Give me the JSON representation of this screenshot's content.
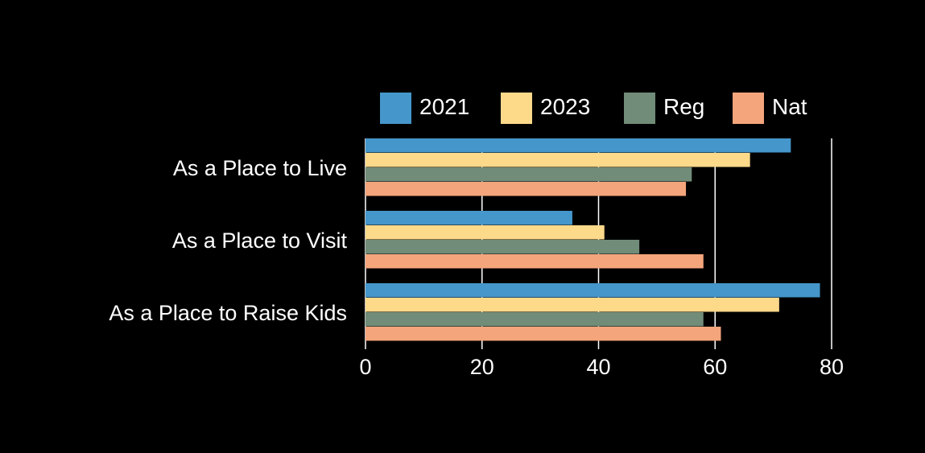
{
  "chart_data": {
    "type": "bar",
    "orientation": "horizontal",
    "title": "",
    "xlabel": "",
    "ylabel": "",
    "categories": [
      "As a Place to Live",
      "As a Place to Visit",
      "As a Place to Raise Kids"
    ],
    "series": [
      {
        "name": "2021",
        "color": "#4596CB",
        "values": [
          73,
          35.5,
          78
        ]
      },
      {
        "name": "2023",
        "color": "#FDD98A",
        "values": [
          66,
          41,
          71
        ]
      },
      {
        "name": "Reg",
        "color": "#718C78",
        "values": [
          56,
          47,
          58
        ]
      },
      {
        "name": "Nat",
        "color": "#F4A57B",
        "values": [
          55,
          58,
          61
        ]
      }
    ],
    "xlim": [
      0,
      80
    ],
    "xticks": [
      "0",
      "20",
      "40",
      "60",
      "80"
    ],
    "grid": true,
    "legend_position": "top",
    "background": "#000000",
    "text_color": "#FFFFFF"
  }
}
